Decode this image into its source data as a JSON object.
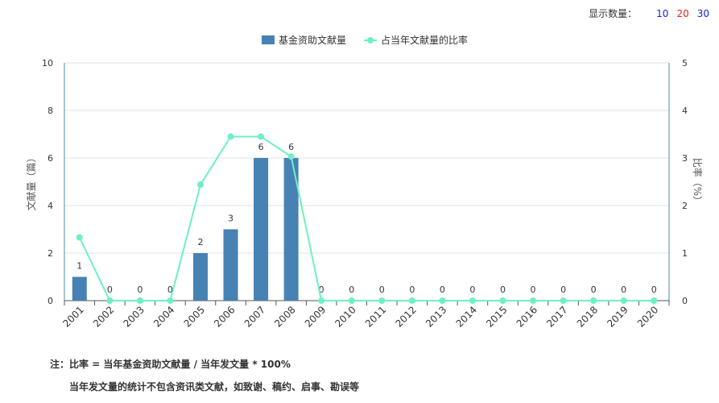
{
  "page_size": {
    "label": "显示数量：",
    "options": [
      {
        "label": "10",
        "color": "#1a1adb"
      },
      {
        "label": "20",
        "color": "#e02020"
      },
      {
        "label": "30",
        "color": "#1a1adb"
      }
    ]
  },
  "notes": {
    "line1": "注：比率 = 当年基金资助文献量 / 当年发文量 * 100%",
    "line2": "当年发文量的统计不包含资讯类文献，如致谢、稿约、启事、勘误等"
  },
  "chart_data": {
    "type": "bar",
    "categories": [
      "2001",
      "2002",
      "2003",
      "2004",
      "2005",
      "2006",
      "2007",
      "2008",
      "2009",
      "2010",
      "2011",
      "2012",
      "2013",
      "2014",
      "2015",
      "2016",
      "2017",
      "2018",
      "2019",
      "2020"
    ],
    "series": [
      {
        "name": "基金资助文献量",
        "type": "bar",
        "axis": "left",
        "color": "#4682b4",
        "values": [
          1,
          0,
          0,
          0,
          2,
          3,
          6,
          6,
          0,
          0,
          0,
          0,
          0,
          0,
          0,
          0,
          0,
          0,
          0,
          0
        ]
      },
      {
        "name": "占当年文献量的比率",
        "type": "line",
        "axis": "right",
        "color": "#6ef0c4",
        "values": [
          1.33,
          0,
          0,
          0,
          2.44,
          3.45,
          3.45,
          3.03,
          0,
          0,
          0,
          0,
          0,
          0,
          0,
          0,
          0,
          0,
          0,
          0
        ]
      }
    ],
    "y_left": {
      "label": "文献量（篇）",
      "min": 0,
      "max": 10,
      "ticks": [
        0,
        2,
        4,
        6,
        8,
        10
      ]
    },
    "y_right": {
      "label": "比率（%）",
      "min": 0,
      "max": 5,
      "ticks": [
        0,
        1,
        2,
        3,
        4,
        5
      ]
    },
    "grid": true,
    "legend_position": "top-center",
    "data_labels": true
  }
}
